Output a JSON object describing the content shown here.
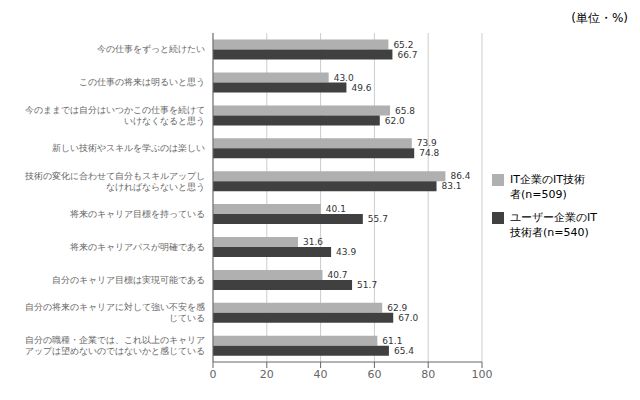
{
  "chart_data": {
    "type": "bar",
    "orientation": "horizontal",
    "title": "(単位・%)",
    "categories": [
      "今の仕事をずっと続けたい",
      "この仕事の将来は明るいと思う",
      "今のままでは自分はいつかこの仕事を続けていけなくなると思う",
      "新しい技術やスキルを学ぶのは楽しい",
      "技術の変化に合わせて自分もスキルアップしなければならないと思う",
      "将来のキャリア目標を持っている",
      "将来のキャリアパスが明確である",
      "自分のキャリア目標は実現可能である",
      "自分の将来のキャリアに対して強い不安を感じている",
      "自分の職種・企業では、これ以上のキャリアアップは望めないのではないかと感じている"
    ],
    "series": [
      {
        "name": "IT企業のIT技術\n者(n=509)",
        "color": "#b0b0b0",
        "values": [
          65.2,
          43.0,
          65.8,
          73.9,
          86.4,
          40.1,
          31.6,
          40.7,
          62.9,
          61.1
        ],
        "value_labels": [
          "65.2",
          "43.0",
          "65.8",
          "73.9",
          "86.4",
          "40.1",
          "31.6",
          "40.7",
          "62.9",
          "61.1"
        ]
      },
      {
        "name": "ユーザー企業のIT\n技術者(n=540)",
        "color": "#404040",
        "values": [
          66.7,
          49.6,
          62.0,
          74.8,
          83.1,
          55.7,
          43.9,
          51.7,
          67.0,
          65.4
        ],
        "value_labels": [
          "66.7",
          "49.6",
          "62.0",
          "74.8",
          "83.1",
          "55.7",
          "43.9",
          "51.7",
          "67.0",
          "65.4"
        ]
      }
    ],
    "xlim": [
      0,
      100
    ],
    "xticks": [
      0,
      20,
      40,
      60,
      80,
      100
    ],
    "grid": true,
    "legend": "right",
    "data_labels": true
  }
}
